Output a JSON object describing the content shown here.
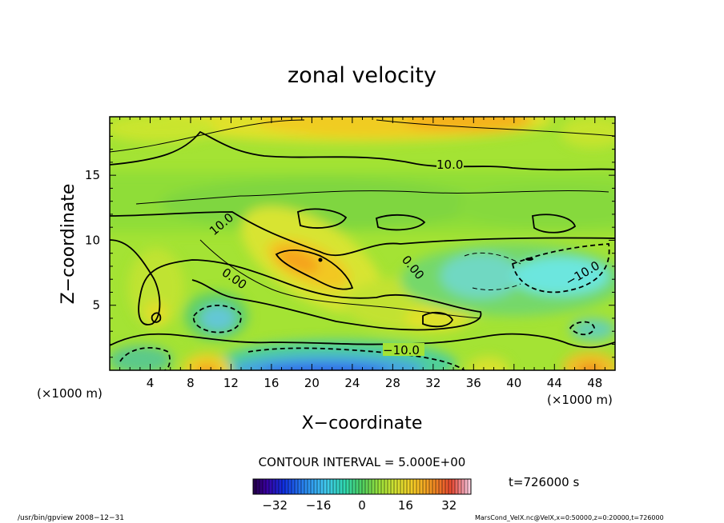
{
  "chart_data": {
    "type": "heatmap",
    "title": "zonal velocity",
    "xlabel": "X−coordinate",
    "ylabel": "Z−coordinate",
    "x_unit_left": "(×1000 m)",
    "x_unit_right": "(×1000 m)",
    "x_ticks": [
      4,
      8,
      12,
      16,
      20,
      24,
      28,
      32,
      36,
      40,
      44,
      48
    ],
    "x_tick_labels": [
      "4",
      "8",
      "12",
      "16",
      "20",
      "24",
      "28",
      "32",
      "36",
      "40",
      "44",
      "48"
    ],
    "y_ticks": [
      5,
      10,
      15
    ],
    "y_tick_labels": [
      "5",
      "10",
      "15"
    ],
    "xlim": [
      0,
      50
    ],
    "ylim": [
      0,
      19.5
    ],
    "contour_interval_text": "CONTOUR INTERVAL = 5.000E+00",
    "time_text": "t=726000 s",
    "colorbar": {
      "range": [
        -40,
        40
      ],
      "ticks": [
        -32,
        -16,
        0,
        16,
        32
      ],
      "tick_labels": [
        "−32",
        "−16",
        "0",
        "16",
        "32"
      ]
    },
    "contour_labels": [
      {
        "text": "10.0",
        "x": 34.0,
        "z": 15.7
      },
      {
        "text": "10.0",
        "x": 11.6,
        "z": 11.2
      },
      {
        "text": "0.00",
        "x": 12.2,
        "z": 7.3
      },
      {
        "text": "0.00",
        "x": 30.0,
        "z": 7.9
      },
      {
        "text": "−10.0",
        "x": 29.5,
        "z": 1.6
      },
      {
        "text": "−10.0",
        "x": 47.3,
        "z": 7.8
      }
    ],
    "colors": {
      "background_field": "#a4e334",
      "high": "#f5a51c",
      "low": "#1e6ef0"
    }
  },
  "footer": {
    "left": "/usr/bin/gpview   2008−12−31",
    "right": "MarsCond_VelX.nc@VelX,x=0:50000,z=0:20000,t=726000"
  }
}
